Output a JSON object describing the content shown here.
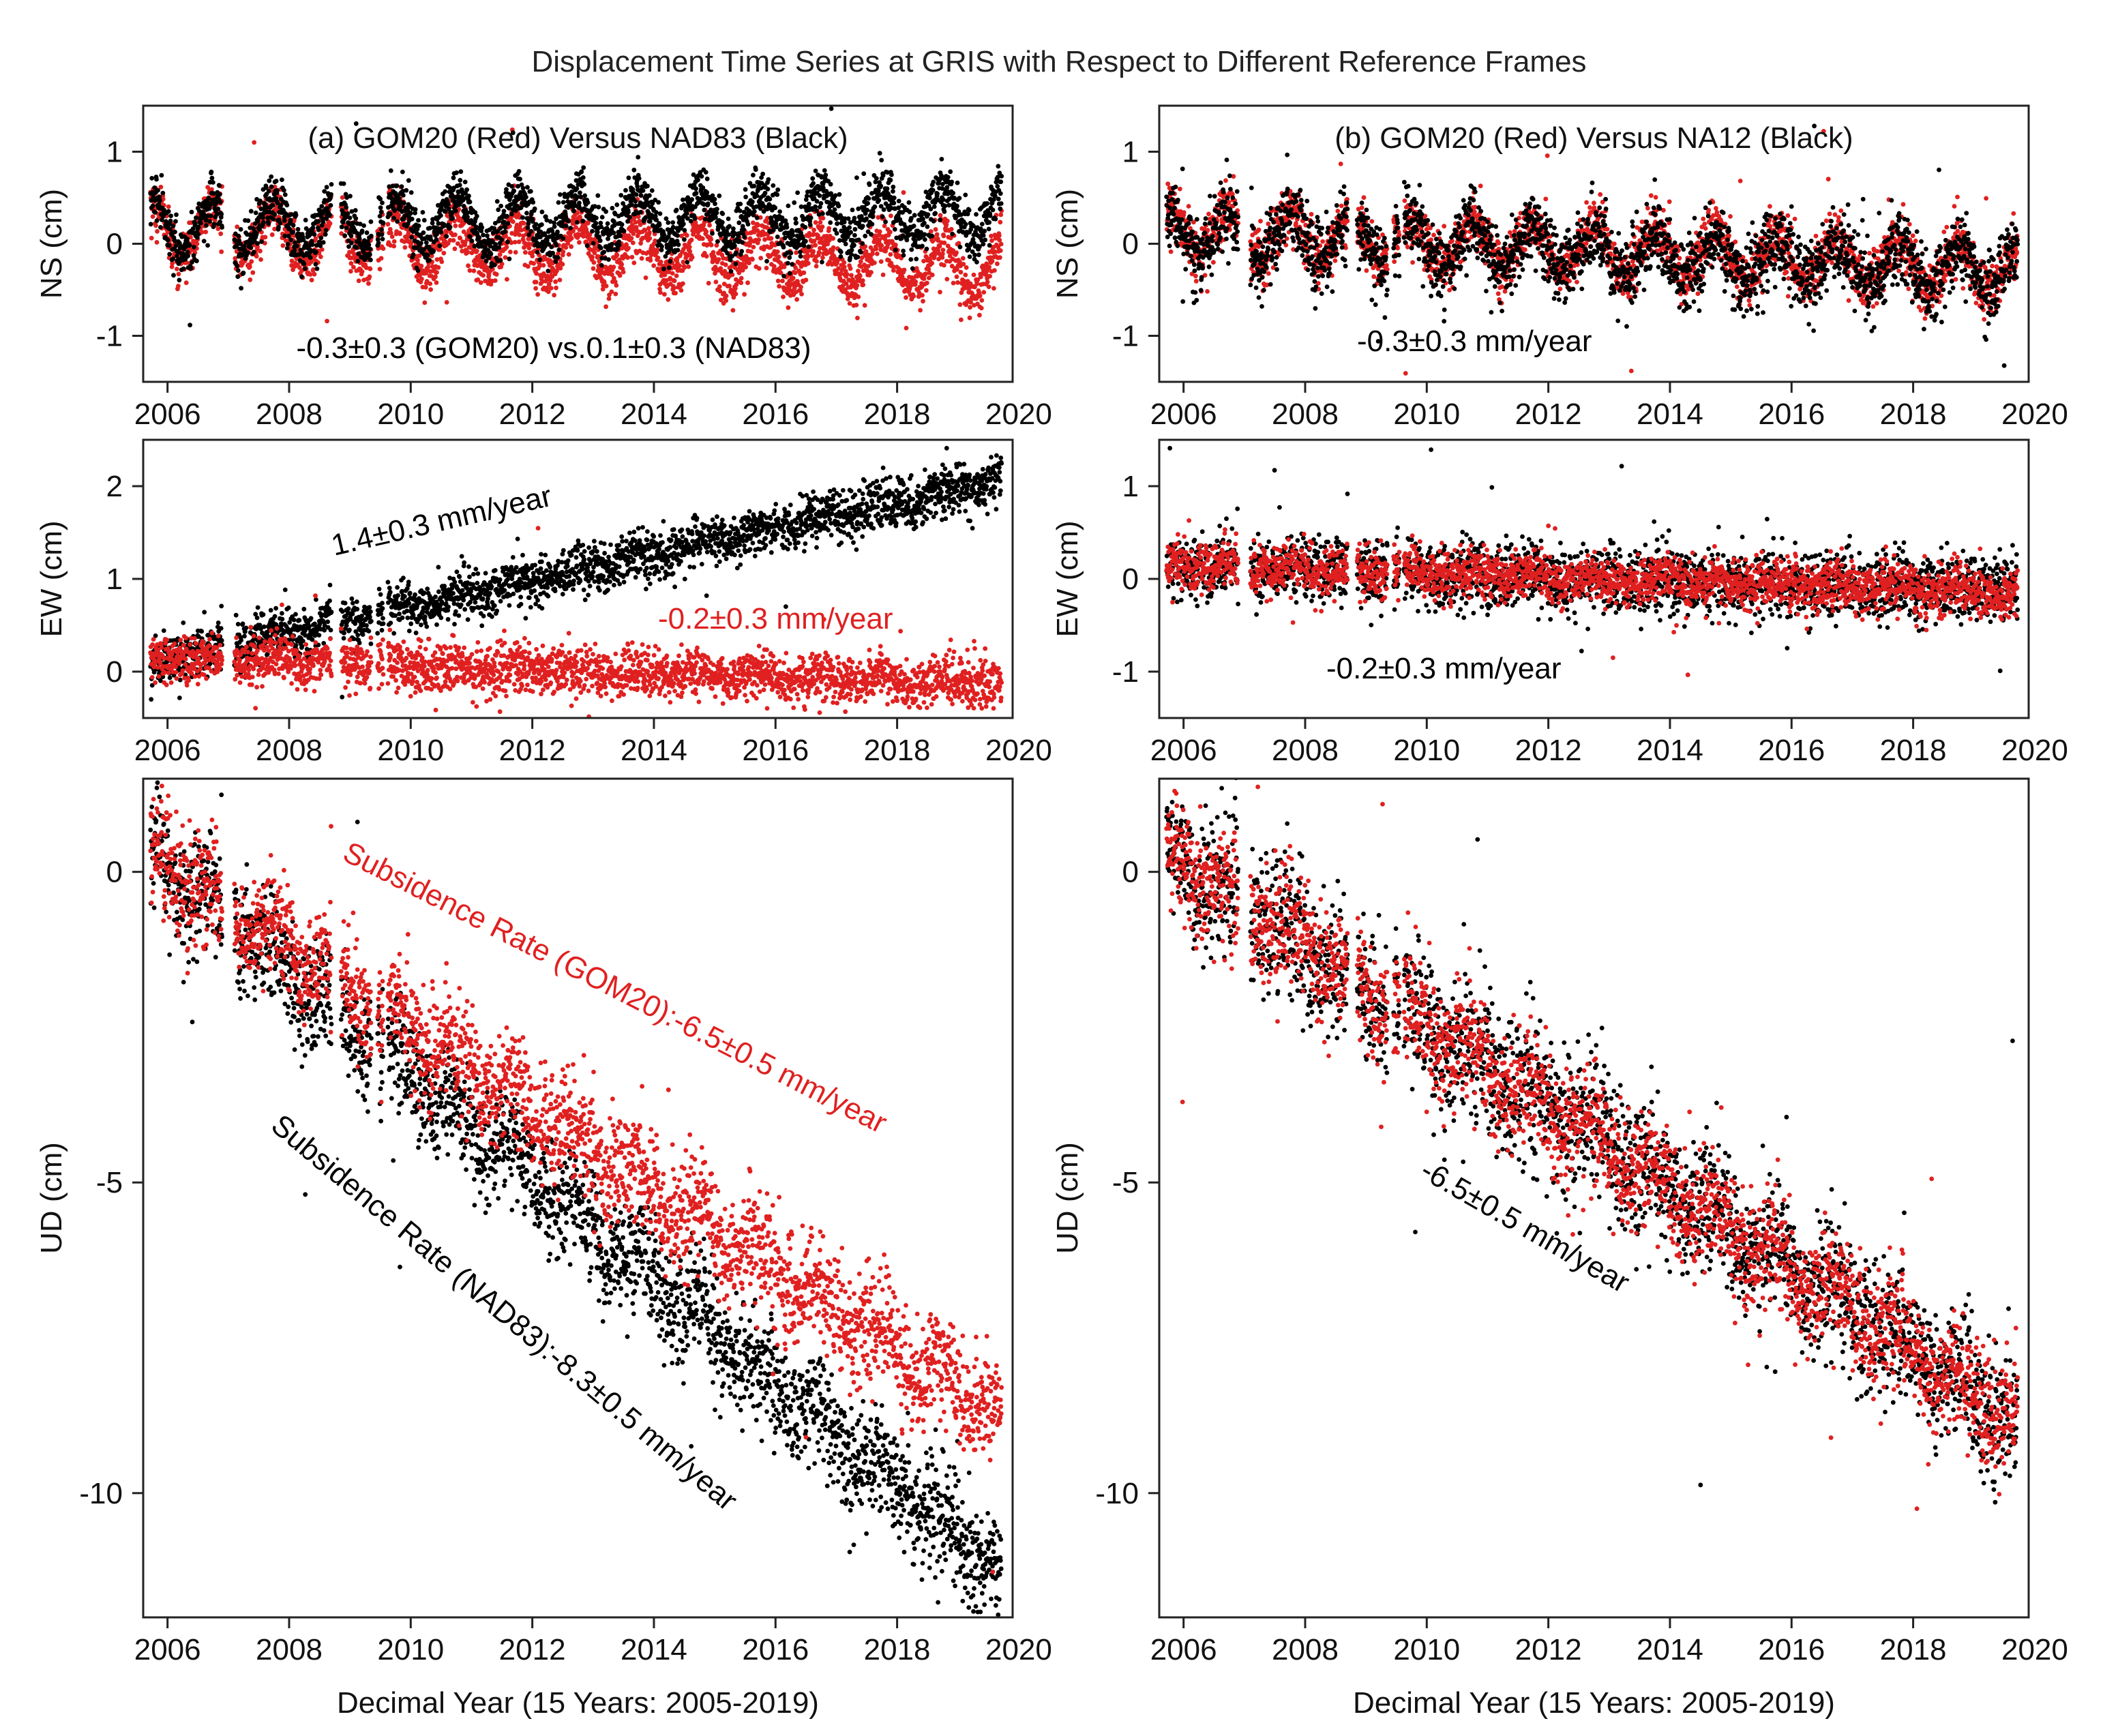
{
  "figure_title": "Displacement Time Series at GRIS with Respect to Different Reference Frames",
  "colors": {
    "gom20": "#e02020",
    "other": "#000000"
  },
  "chart_data": [
    {
      "id": "a-ns",
      "type": "scatter",
      "model": "seasonal",
      "title": "(a) GOM20 (Red) Versus NAD83 (Black)",
      "ylabel": "NS (cm)",
      "xlim": [
        2005.6,
        2019.9
      ],
      "ylim": [
        -1.5,
        1.5
      ],
      "xticks": [
        "2006",
        "2008",
        "2010",
        "2012",
        "2014",
        "2016",
        "2018",
        "2020"
      ],
      "yticks": [
        "-1",
        "0",
        "1"
      ],
      "series": [
        {
          "name": "GOM20",
          "color": "#e02020",
          "start": 0.15,
          "rate_cm_per_yr": -0.03,
          "amplitude": 0.28,
          "noise": 0.14
        },
        {
          "name": "NAD83",
          "color": "#000000",
          "start": 0.2,
          "rate_cm_per_yr": 0.01,
          "amplitude": 0.28,
          "noise": 0.14
        }
      ],
      "annotations": [
        {
          "text": "-0.3±0.3 (GOM20) vs.0.1±0.3 (NAD83)",
          "color": "#000000"
        }
      ]
    },
    {
      "id": "b-ns",
      "type": "scatter",
      "model": "seasonal",
      "title": "(b) GOM20 (Red) Versus NA12 (Black)",
      "ylabel": "NS (cm)",
      "xlim": [
        2005.6,
        2019.9
      ],
      "ylim": [
        -1.5,
        1.5
      ],
      "xticks": [
        "2006",
        "2008",
        "2010",
        "2012",
        "2014",
        "2016",
        "2018",
        "2020"
      ],
      "yticks": [
        "-1",
        "0",
        "1"
      ],
      "series": [
        {
          "name": "GOM20",
          "color": "#e02020",
          "start": 0.15,
          "rate_cm_per_yr": -0.03,
          "amplitude": 0.25,
          "noise": 0.15
        },
        {
          "name": "NA12",
          "color": "#000000",
          "start": 0.12,
          "rate_cm_per_yr": -0.03,
          "amplitude": 0.22,
          "noise": 0.2
        }
      ],
      "annotations": [
        {
          "text": "-0.3±0.3 mm/year",
          "color": "#000000"
        }
      ]
    },
    {
      "id": "a-ew",
      "type": "scatter",
      "model": "linear",
      "title": "",
      "ylabel": "EW (cm)",
      "xlim": [
        2005.6,
        2019.9
      ],
      "ylim": [
        -0.5,
        2.5
      ],
      "xticks": [
        "2006",
        "2008",
        "2010",
        "2012",
        "2014",
        "2016",
        "2018",
        "2020"
      ],
      "yticks": [
        "0",
        "1",
        "2"
      ],
      "series": [
        {
          "name": "NAD83",
          "color": "#000000",
          "start": 0.1,
          "rate_cm_per_yr": 0.14,
          "amplitude": 0.05,
          "noise": 0.13
        },
        {
          "name": "GOM20",
          "color": "#e02020",
          "start": 0.15,
          "rate_cm_per_yr": -0.02,
          "amplitude": 0.05,
          "noise": 0.13
        }
      ],
      "annotations": [
        {
          "text": "1.4±0.3 mm/year",
          "color": "#000000"
        },
        {
          "text": "-0.2±0.3 mm/year",
          "color": "#e02020"
        }
      ]
    },
    {
      "id": "b-ew",
      "type": "scatter",
      "model": "linear",
      "title": "",
      "ylabel": "EW (cm)",
      "xlim": [
        2005.6,
        2019.9
      ],
      "ylim": [
        -1.5,
        1.5
      ],
      "xticks": [
        "2006",
        "2008",
        "2010",
        "2012",
        "2014",
        "2016",
        "2018",
        "2020"
      ],
      "yticks": [
        "-1",
        "0",
        "1"
      ],
      "series": [
        {
          "name": "NA12",
          "color": "#000000",
          "start": 0.15,
          "rate_cm_per_yr": -0.02,
          "amplitude": 0.04,
          "noise": 0.18
        },
        {
          "name": "GOM20",
          "color": "#e02020",
          "start": 0.15,
          "rate_cm_per_yr": -0.02,
          "amplitude": 0.04,
          "noise": 0.13
        }
      ],
      "annotations": [
        {
          "text": "-0.2±0.3 mm/year",
          "color": "#000000"
        }
      ]
    },
    {
      "id": "a-ud",
      "type": "scatter",
      "model": "linear",
      "title": "",
      "ylabel": "UD (cm)",
      "xlabel": "Decimal Year (15 Years: 2005-2019)",
      "xlim": [
        2005.6,
        2019.9
      ],
      "ylim": [
        -12,
        1.5
      ],
      "xticks": [
        "2006",
        "2008",
        "2010",
        "2012",
        "2014",
        "2016",
        "2018",
        "2020"
      ],
      "yticks": [
        "0",
        "-5",
        "-10"
      ],
      "series": [
        {
          "name": "NAD83",
          "color": "#000000",
          "start": 0.3,
          "rate_cm_per_yr": -0.83,
          "amplitude": 0.25,
          "noise": 0.45
        },
        {
          "name": "GOM20",
          "color": "#e02020",
          "start": 0.3,
          "rate_cm_per_yr": -0.65,
          "amplitude": 0.25,
          "noise": 0.45
        }
      ],
      "annotations": [
        {
          "text": "Subsidence Rate (GOM20):-6.5±0.5 mm/year",
          "color": "#e02020"
        },
        {
          "text": "Subsidence Rate (NAD83):-8.3±0.5 mm/year",
          "color": "#000000"
        }
      ]
    },
    {
      "id": "b-ud",
      "type": "scatter",
      "model": "linear",
      "title": "",
      "ylabel": "UD (cm)",
      "xlabel": "Decimal Year (15 Years: 2005-2019)",
      "xlim": [
        2005.6,
        2019.9
      ],
      "ylim": [
        -12,
        1.5
      ],
      "xticks": [
        "2006",
        "2008",
        "2010",
        "2012",
        "2014",
        "2016",
        "2018",
        "2020"
      ],
      "yticks": [
        "0",
        "-5",
        "-10"
      ],
      "series": [
        {
          "name": "NA12",
          "color": "#000000",
          "start": 0.3,
          "rate_cm_per_yr": -0.65,
          "amplitude": 0.25,
          "noise": 0.55
        },
        {
          "name": "GOM20",
          "color": "#e02020",
          "start": 0.3,
          "rate_cm_per_yr": -0.65,
          "amplitude": 0.25,
          "noise": 0.45
        }
      ],
      "annotations": [
        {
          "text": "-6.5±0.5 mm/year",
          "color": "#000000"
        }
      ]
    }
  ]
}
